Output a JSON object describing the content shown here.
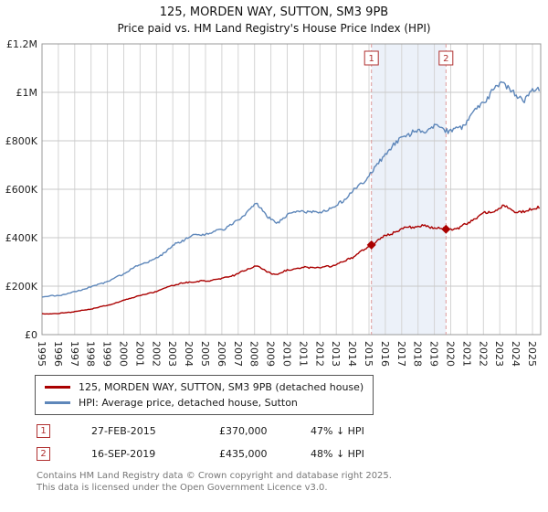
{
  "chart_data": {
    "type": "line",
    "title": "125, MORDEN WAY, SUTTON, SM3 9PB",
    "subtitle": "Price paid vs. HM Land Registry's House Price Index (HPI)",
    "x_range": [
      1995,
      2025.5
    ],
    "y_range": [
      0,
      1200000
    ],
    "x_ticks": [
      1995,
      1996,
      1997,
      1998,
      1999,
      2000,
      2001,
      2002,
      2003,
      2004,
      2005,
      2006,
      2007,
      2008,
      2009,
      2010,
      2011,
      2012,
      2013,
      2014,
      2015,
      2016,
      2017,
      2018,
      2019,
      2020,
      2021,
      2022,
      2023,
      2024,
      2025
    ],
    "y_ticks": [
      {
        "v": 0,
        "label": "£0"
      },
      {
        "v": 200000,
        "label": "£200K"
      },
      {
        "v": 400000,
        "label": "£400K"
      },
      {
        "v": 600000,
        "label": "£600K"
      },
      {
        "v": 800000,
        "label": "£800K"
      },
      {
        "v": 1000000,
        "label": "£1M"
      },
      {
        "v": 1200000,
        "label": "£1.2M"
      }
    ],
    "colors": {
      "property": "#aa0000",
      "hpi": "#5e87ba",
      "shade": "#dfe8f5",
      "dashed": "#dd9999",
      "grid": "#d4d4d4",
      "marker_box": "#b03030"
    },
    "series": [
      {
        "name": "125, MORDEN WAY, SUTTON, SM3 9PB (detached house)",
        "color": "#aa0000",
        "x": [
          1995,
          1996,
          1997,
          1998,
          1999,
          2000,
          2001,
          2002,
          2003,
          2004,
          2005,
          2006,
          2007,
          2008.1,
          2008.8,
          2009.4,
          2010,
          2011,
          2012,
          2013,
          2014,
          2015.15,
          2016,
          2017,
          2017.8,
          2018.5,
          2019.71,
          2020.6,
          2021.2,
          2022,
          2022.8,
          2023.3,
          2023.9,
          2024.4,
          2024.9,
          2025.3
        ],
        "values": [
          86000,
          87000,
          95000,
          106000,
          121000,
          141000,
          162000,
          179000,
          204000,
          217000,
          221000,
          231000,
          251000,
          286000,
          259000,
          246000,
          267000,
          277000,
          276000,
          288000,
          320000,
          370000,
          408000,
          437000,
          448000,
          445000,
          435000,
          441000,
          467000,
          497000,
          519000,
          531000,
          512000,
          504000,
          519000,
          526000
        ]
      },
      {
        "name": "HPI: Average price, detached house, Sutton",
        "color": "#5e87ba",
        "x": [
          1995,
          1996,
          1997,
          1998,
          1999,
          2000,
          2001,
          2002,
          2003,
          2004,
          2005,
          2006,
          2007,
          2008.1,
          2008.8,
          2009.4,
          2010,
          2011,
          2012,
          2013,
          2014,
          2015,
          2016,
          2017,
          2017.8,
          2018.5,
          2019.2,
          2019.9,
          2020.6,
          2021.2,
          2022,
          2022.8,
          2023.3,
          2023.9,
          2024.4,
          2024.9,
          2025.3
        ],
        "values": [
          158000,
          161000,
          176000,
          197000,
          219000,
          252000,
          289000,
          314000,
          367000,
          404000,
          416000,
          432000,
          470000,
          543000,
          487000,
          457000,
          498000,
          511000,
          504000,
          531000,
          589000,
          656000,
          745000,
          812000,
          838000,
          846000,
          858000,
          842000,
          852000,
          905000,
          963000,
          1022000,
          1041000,
          988000,
          962000,
          1002000,
          1012000
        ]
      }
    ],
    "shaded_region": [
      2015.15,
      2019.71
    ],
    "sales": [
      {
        "n": "1",
        "date": "27-FEB-2015",
        "x": 2015.15,
        "price": 370000,
        "price_label": "£370,000",
        "hpi_label": "47% ↓ HPI"
      },
      {
        "n": "2",
        "date": "16-SEP-2019",
        "x": 2019.71,
        "price": 435000,
        "price_label": "£435,000",
        "hpi_label": "48% ↓ HPI"
      }
    ]
  },
  "footer": {
    "line1": "Contains HM Land Registry data © Crown copyright and database right 2025.",
    "line2": "This data is licensed under the Open Government Licence v3.0."
  }
}
